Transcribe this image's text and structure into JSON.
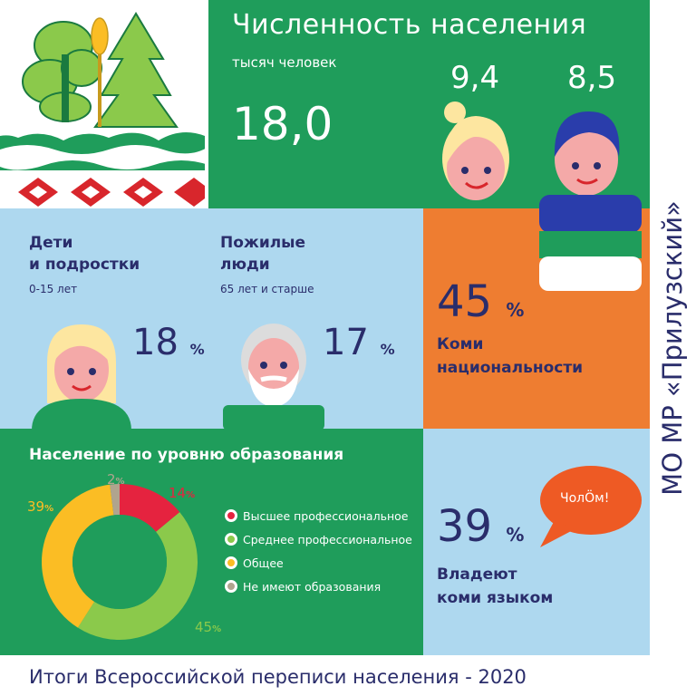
{
  "population": {
    "title": "Численность населения",
    "unit_label": "тысяч человек",
    "total": "18,0",
    "women": "9,4",
    "men": "8,5"
  },
  "children": {
    "title_line1": "Дети",
    "title_line2": "и подростки",
    "range": "0-15 лет",
    "percent": "18",
    "percent_sign": "%"
  },
  "elderly": {
    "title_line1": "Пожилые",
    "title_line2": "люди",
    "range": "65 лет и старше",
    "percent": "17",
    "percent_sign": "%"
  },
  "komi": {
    "percent": "45",
    "percent_sign": "%",
    "label_line1": "Коми",
    "label_line2": "национальности"
  },
  "education": {
    "title": "Население по уровню образования",
    "legend": [
      {
        "label": "Высшее профессиональное",
        "color": "#e5233f"
      },
      {
        "label": "Среднее профессиональное",
        "color": "#8bc94b"
      },
      {
        "label": "Общее",
        "color": "#fbbd24"
      },
      {
        "label": "Не имеют образования",
        "color": "#b0a48e"
      }
    ],
    "labels": {
      "higher": "14",
      "secondary": "45",
      "general": "39",
      "none": "2",
      "percent_sign": "%"
    }
  },
  "chart_data": {
    "type": "pie",
    "title": "Население по уровню образования",
    "categories": [
      "Высшее профессиональное",
      "Среднее профессиональное",
      "Общее",
      "Не имеют образования"
    ],
    "values": [
      14,
      45,
      39,
      2
    ],
    "unit": "%",
    "donut": true,
    "colors": [
      "#e5233f",
      "#8bc94b",
      "#fbbd24",
      "#b0a48e"
    ],
    "legend_position": "right"
  },
  "language": {
    "percent": "39",
    "percent_sign": "%",
    "label_line1": "Владеют",
    "label_line2": "коми языком",
    "bubble": "ЧолÖм!"
  },
  "side_title": "МО МР «Прилузский»",
  "footer": "Итоги Всероссийской переписи населения - 2020",
  "colors": {
    "green": "#1f9d5b",
    "light_blue": "#aed8ef",
    "orange": "#ee7d31",
    "navy": "#2a2d6b",
    "bubble": "#ee5a24"
  }
}
